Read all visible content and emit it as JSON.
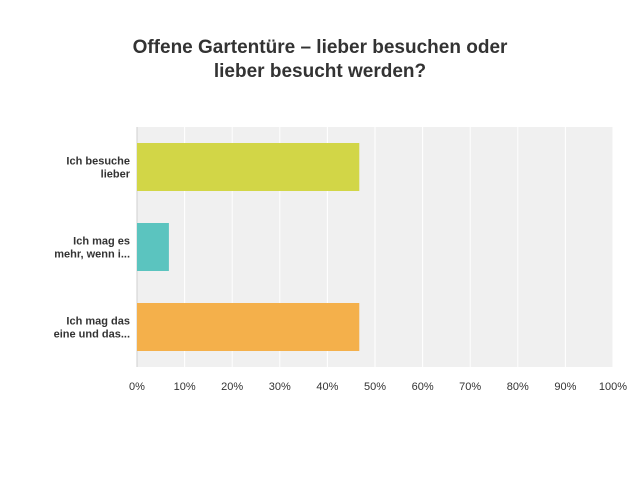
{
  "chart_data": {
    "type": "bar",
    "orientation": "horizontal",
    "title": "Offene Gartentüre – lieber besuchen oder\nlieber besucht werden?",
    "categories": [
      [
        "Ich besuche",
        "lieber"
      ],
      [
        "Ich mag es",
        "mehr, wenn i..."
      ],
      [
        "Ich mag das",
        "eine und das..."
      ]
    ],
    "values": [
      46.7,
      6.7,
      46.7
    ],
    "colors": [
      "#d2d647",
      "#5bc4bf",
      "#f4b04b"
    ],
    "xlim": [
      0,
      100
    ],
    "xticks": [
      "0%",
      "10%",
      "20%",
      "30%",
      "40%",
      "50%",
      "60%",
      "70%",
      "80%",
      "90%",
      "100%"
    ],
    "grid": true,
    "background_color": "#f0f0f0"
  }
}
